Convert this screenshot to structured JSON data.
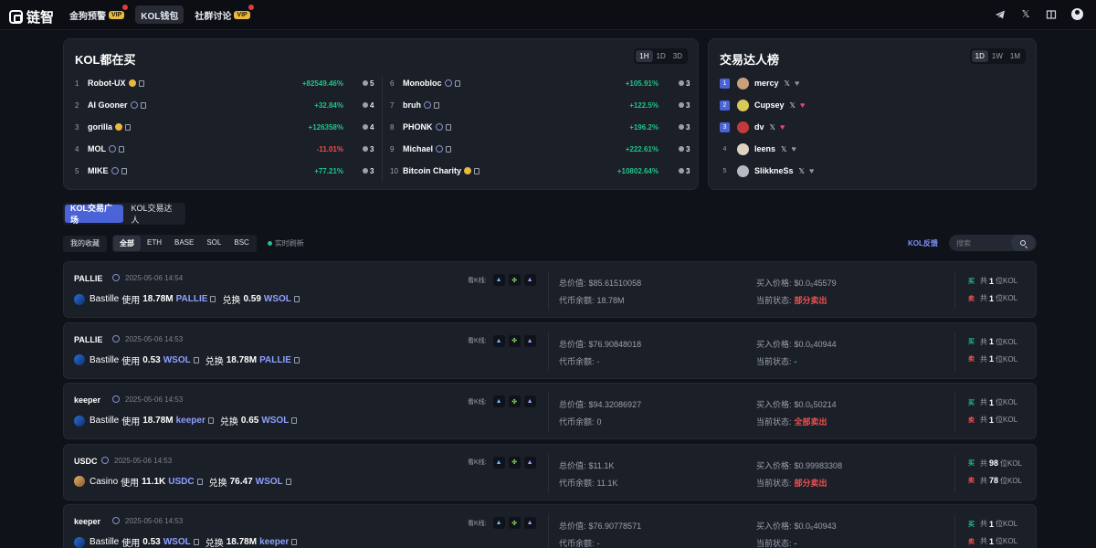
{
  "brand": {
    "name": "链智"
  },
  "nav": [
    {
      "label": "金狗预警",
      "badge": "VIP",
      "dot": true
    },
    {
      "label": "KOL钱包",
      "active": true
    },
    {
      "label": "社群讨论",
      "badge": "VIP",
      "dot": true
    }
  ],
  "kol_panel": {
    "title": "KOL都在买",
    "ranges": [
      "1H",
      "1D",
      "3D"
    ],
    "active_range": "1H",
    "left": [
      {
        "rank": "1",
        "name": "Robot-UX",
        "chain": "bnb",
        "pct": "+82549.46%",
        "count": "5",
        "dir": "pos"
      },
      {
        "rank": "2",
        "name": "AI Gooner",
        "chain": "sol",
        "pct": "+32.84%",
        "count": "4",
        "dir": "pos"
      },
      {
        "rank": "3",
        "name": "gorilla",
        "chain": "bnb",
        "pct": "+126358%",
        "count": "4",
        "dir": "pos"
      },
      {
        "rank": "4",
        "name": "MOL",
        "chain": "sol",
        "pct": "-11.01%",
        "count": "3",
        "dir": "neg"
      },
      {
        "rank": "5",
        "name": "MIKE",
        "chain": "sol",
        "pct": "+77.21%",
        "count": "3",
        "dir": "pos"
      }
    ],
    "right": [
      {
        "rank": "6",
        "name": "Monobloc",
        "chain": "sol",
        "pct": "+105.91%",
        "count": "3",
        "dir": "pos"
      },
      {
        "rank": "7",
        "name": "bruh",
        "chain": "sol",
        "pct": "+122.5%",
        "count": "3",
        "dir": "pos"
      },
      {
        "rank": "8",
        "name": "PHONK",
        "chain": "sol",
        "pct": "+196.2%",
        "count": "3",
        "dir": "pos"
      },
      {
        "rank": "9",
        "name": "Michael",
        "chain": "sol",
        "pct": "+222.61%",
        "count": "3",
        "dir": "pos"
      },
      {
        "rank": "10",
        "name": "Bitcoin Charity",
        "chain": "bnb",
        "pct": "+10802.64%",
        "count": "3",
        "dir": "pos"
      }
    ]
  },
  "traders_panel": {
    "title": "交易达人榜",
    "ranges": [
      "1D",
      "1W",
      "1M"
    ],
    "active_range": "1D",
    "items": [
      {
        "rank": "1",
        "name": "mercy",
        "liked": false,
        "color": "#c9a07a"
      },
      {
        "rank": "2",
        "name": "Cupsey",
        "liked": true,
        "color": "#d8c95a"
      },
      {
        "rank": "3",
        "name": "dv",
        "liked": true,
        "color": "#c23b3b"
      },
      {
        "rank": "4",
        "name": "leens",
        "liked": false,
        "color": "#e0d2c2"
      },
      {
        "rank": "5",
        "name": "SlikkneSs",
        "liked": false,
        "color": "#b5b9c4"
      }
    ],
    "x_label": "𝕏"
  },
  "tabs": [
    "KOL交易广场",
    "KOL交易达人"
  ],
  "filters": {
    "my_fav": "我的收藏",
    "chains": [
      "全部",
      "ETH",
      "BASE",
      "SOL",
      "BSC"
    ],
    "active_chain": "全部",
    "live": "实时刷新",
    "feedback": "KOL反馈",
    "search_placeholder": "搜索"
  },
  "labels": {
    "use": "使用",
    "swap": "兑换",
    "kline": "看K线:",
    "total_value": "总价值:",
    "token_balance": "代币余额:",
    "buy_price": "买入价格:",
    "status": "当前状态:",
    "buy": "买",
    "sell": "卖",
    "total": "共",
    "kol_unit": "位KOL"
  },
  "trades": [
    {
      "token": "PALLIE",
      "time": "2025-05-06 14:54",
      "who": "Bastille",
      "avatar": "blue",
      "amt1": "18.78M",
      "sym1": "PALLIE",
      "amt2": "0.59",
      "sym2": "WSOL",
      "total_value": "$85.61510058",
      "balance": "18.78M",
      "buy_price": "$0.0₆45579",
      "status": "部分卖出",
      "status_color": "red",
      "buy_count": "1",
      "sell_count": "1"
    },
    {
      "token": "PALLIE",
      "time": "2025-05-06 14:53",
      "who": "Bastille",
      "avatar": "blue",
      "amt1": "0.53",
      "sym1": "WSOL",
      "amt2": "18.78M",
      "sym2": "PALLIE",
      "total_value": "$76.90848018",
      "balance": "-",
      "buy_price": "$0.0₆40944",
      "status": "-",
      "status_color": "grn",
      "buy_count": "1",
      "sell_count": "1"
    },
    {
      "token": "keeper",
      "time": "2025-05-06 14:53",
      "who": "Bastille",
      "avatar": "blue",
      "amt1": "18.78M",
      "sym1": "keeper",
      "amt2": "0.65",
      "sym2": "WSOL",
      "total_value": "$94.32086927",
      "balance": "0",
      "buy_price": "$0.0₆50214",
      "status": "全部卖出",
      "status_color": "red",
      "buy_count": "1",
      "sell_count": "1"
    },
    {
      "token": "USDC",
      "time": "2025-05-06 14:53",
      "who": "Casino",
      "avatar": "casino",
      "amt1": "11.1K",
      "sym1": "USDC",
      "amt2": "76.47",
      "sym2": "WSOL",
      "total_value": "$11.1K",
      "balance": "11.1K",
      "buy_price": "$0.99983308",
      "status": "部分卖出",
      "status_color": "red",
      "buy_count": "98",
      "sell_count": "78"
    },
    {
      "token": "keeper",
      "time": "2025-05-06 14:53",
      "who": "Bastille",
      "avatar": "blue",
      "amt1": "0.53",
      "sym1": "WSOL",
      "amt2": "18.78M",
      "sym2": "keeper",
      "total_value": "$76.90778571",
      "balance": "-",
      "buy_price": "$0.0₆40943",
      "status": "-",
      "status_color": "grn",
      "buy_count": "1",
      "sell_count": "1"
    }
  ],
  "colors": {
    "accent": "#4a63d6",
    "positive": "#22c28a",
    "negative": "#f0504e",
    "link": "#8ea0ff"
  }
}
